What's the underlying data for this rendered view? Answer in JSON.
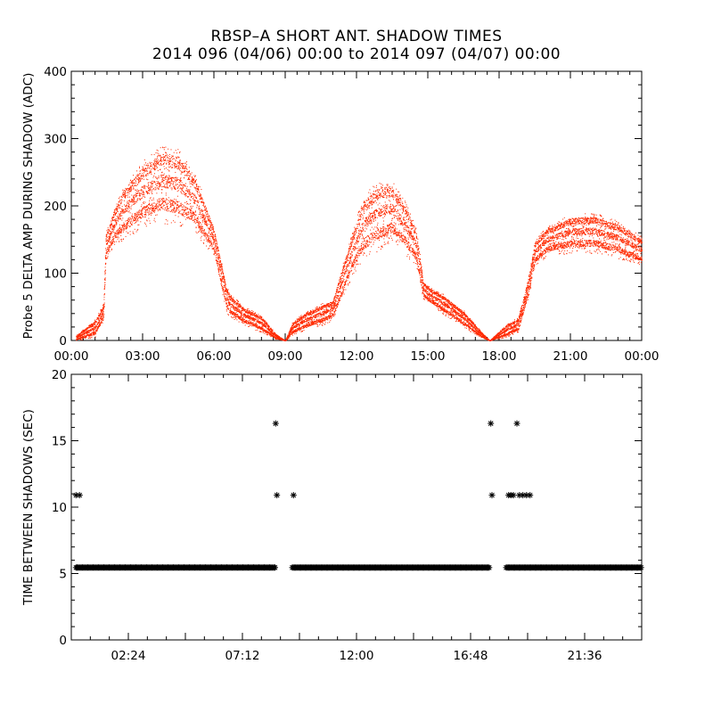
{
  "title": "RBSP–A SHORT ANT. SHADOW TIMES",
  "subtitle": "2014 096 (04/06) 00:00 to 2014 097 (04/07) 00:00",
  "colors": {
    "amplitude_points": "#ff2a00",
    "interval_points": "#000000",
    "axes": "#000000"
  },
  "chart_data": [
    {
      "type": "scatter",
      "ylabel": "Probe 5 DELTA AMP DURING SHADOW (ADC)",
      "xlabel": "",
      "xlim": [
        0,
        24
      ],
      "ylim": [
        0,
        400
      ],
      "xtick_labels": [
        "00:00",
        "03:00",
        "06:00",
        "09:00",
        "12:00",
        "15:00",
        "18:00",
        "21:00",
        "00:00"
      ],
      "ytick_labels": [
        "0",
        "100",
        "200",
        "300",
        "400"
      ],
      "point_color": "#ff2a00",
      "x_unit": "hours since 2014-04-06 00:00 UT",
      "envelope": {
        "x": [
          0.2,
          1.0,
          1.35,
          1.45,
          1.8,
          2.2,
          3.0,
          3.75,
          4.5,
          5.2,
          6.0,
          6.5,
          6.65,
          7.3,
          8.0,
          8.6,
          9.0,
          9.3,
          9.8,
          10.5,
          11.0,
          11.3,
          11.8,
          12.3,
          13.0,
          13.5,
          14.0,
          14.5,
          14.8,
          15.0,
          15.7,
          16.5,
          17.2,
          17.6,
          18.3,
          18.8,
          19.2,
          19.5,
          20.0,
          21.0,
          22.0,
          23.0,
          24.0
        ],
        "y_low": [
          0,
          5,
          30,
          120,
          140,
          150,
          165,
          175,
          170,
          160,
          125,
          45,
          35,
          22,
          12,
          2,
          0,
          8,
          15,
          22,
          30,
          55,
          95,
          120,
          135,
          145,
          130,
          110,
          62,
          55,
          38,
          20,
          5,
          0,
          5,
          12,
          60,
          110,
          125,
          130,
          130,
          122,
          110
        ],
        "y_high": [
          8,
          32,
          55,
          160,
          200,
          232,
          268,
          290,
          285,
          250,
          170,
          85,
          70,
          50,
          38,
          10,
          0,
          28,
          42,
          55,
          62,
          100,
          160,
          218,
          240,
          238,
          210,
          170,
          90,
          82,
          68,
          45,
          15,
          0,
          25,
          35,
          90,
          150,
          170,
          188,
          190,
          178,
          155
        ],
        "band_centers": [
          0.25,
          0.55,
          0.82
        ]
      }
    },
    {
      "type": "scatter",
      "ylabel": "TIME BETWEEN SHADOWS (SEC)",
      "xlabel": "",
      "xlim": [
        0,
        24
      ],
      "ylim": [
        0,
        20
      ],
      "xtick_labels": [
        "02:24",
        "07:12",
        "12:00",
        "16:48",
        "21:36"
      ],
      "xtick_hours": [
        2.4,
        7.2,
        12.0,
        16.8,
        21.6
      ],
      "ytick_labels": [
        "0",
        "5",
        "10",
        "15",
        "20"
      ],
      "marker": "asterisk",
      "point_color": "#000000",
      "baseline_value": 5.45,
      "baseline_segments": [
        [
          0.2,
          8.6
        ],
        [
          9.3,
          17.6
        ],
        [
          18.3,
          24.0
        ]
      ],
      "outliers": [
        {
          "x": 0.2,
          "y": 10.9
        },
        {
          "x": 0.35,
          "y": 10.9
        },
        {
          "x": 8.6,
          "y": 16.3
        },
        {
          "x": 8.65,
          "y": 10.9
        },
        {
          "x": 9.35,
          "y": 10.9
        },
        {
          "x": 17.65,
          "y": 16.3
        },
        {
          "x": 17.7,
          "y": 10.9
        },
        {
          "x": 18.4,
          "y": 10.9
        },
        {
          "x": 18.5,
          "y": 10.9
        },
        {
          "x": 18.6,
          "y": 10.9
        },
        {
          "x": 18.75,
          "y": 16.3
        },
        {
          "x": 18.85,
          "y": 10.9
        },
        {
          "x": 19.0,
          "y": 10.9
        },
        {
          "x": 19.15,
          "y": 10.9
        },
        {
          "x": 19.3,
          "y": 10.9
        }
      ]
    }
  ]
}
